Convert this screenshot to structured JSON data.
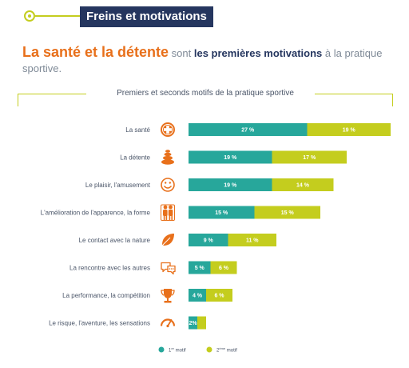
{
  "header": {
    "title": "Freins et motivations"
  },
  "headline": {
    "part1": "La santé et la détente",
    "part2": " sont ",
    "part3": "les premières motivations",
    "part4": " à la pratique sportive."
  },
  "colors": {
    "first": "#27a79b",
    "second": "#c4cd1e",
    "icon": "#e8701b",
    "navy": "#25365f"
  },
  "chart_data": {
    "type": "bar",
    "stacked": true,
    "orientation": "horizontal",
    "title": "Premiers et seconds motifs de la pratique sportive",
    "categories": [
      "La santé",
      "La détente",
      "Le plaisir, l'amusement",
      "L'amélioration de l'apparence, la forme",
      "Le contact avec la nature",
      "La rencontre avec les autres",
      "La performance, la compétition",
      "Le risque, l'aventure, les sensations"
    ],
    "icons": [
      "health-cross-icon",
      "stones-icon",
      "smiley-icon",
      "people-icon",
      "leaf-icon",
      "speech-bubbles-icon",
      "trophy-icon",
      "speedometer-icon"
    ],
    "series": [
      {
        "name": "1er motif",
        "values": [
          27,
          19,
          19,
          15,
          9,
          5,
          4,
          2
        ],
        "labels": [
          "27 %",
          "19 %",
          "19 %",
          "15 %",
          "9 %",
          "5 %",
          "4 %",
          "2%"
        ]
      },
      {
        "name": "2ème motif",
        "values": [
          19,
          17,
          14,
          15,
          11,
          6,
          6,
          2
        ],
        "labels": [
          "19 %",
          "17 %",
          "14 %",
          "15 %",
          "11 %",
          "6 %",
          "6 %",
          "2%"
        ]
      }
    ],
    "legend": {
      "placement": "bottom",
      "entries": [
        {
          "base": "1",
          "sup": "er",
          "rest": " motif"
        },
        {
          "base": "2",
          "sup": "ème",
          "rest": " motif"
        }
      ]
    },
    "xlim": [
      0,
      46
    ]
  }
}
